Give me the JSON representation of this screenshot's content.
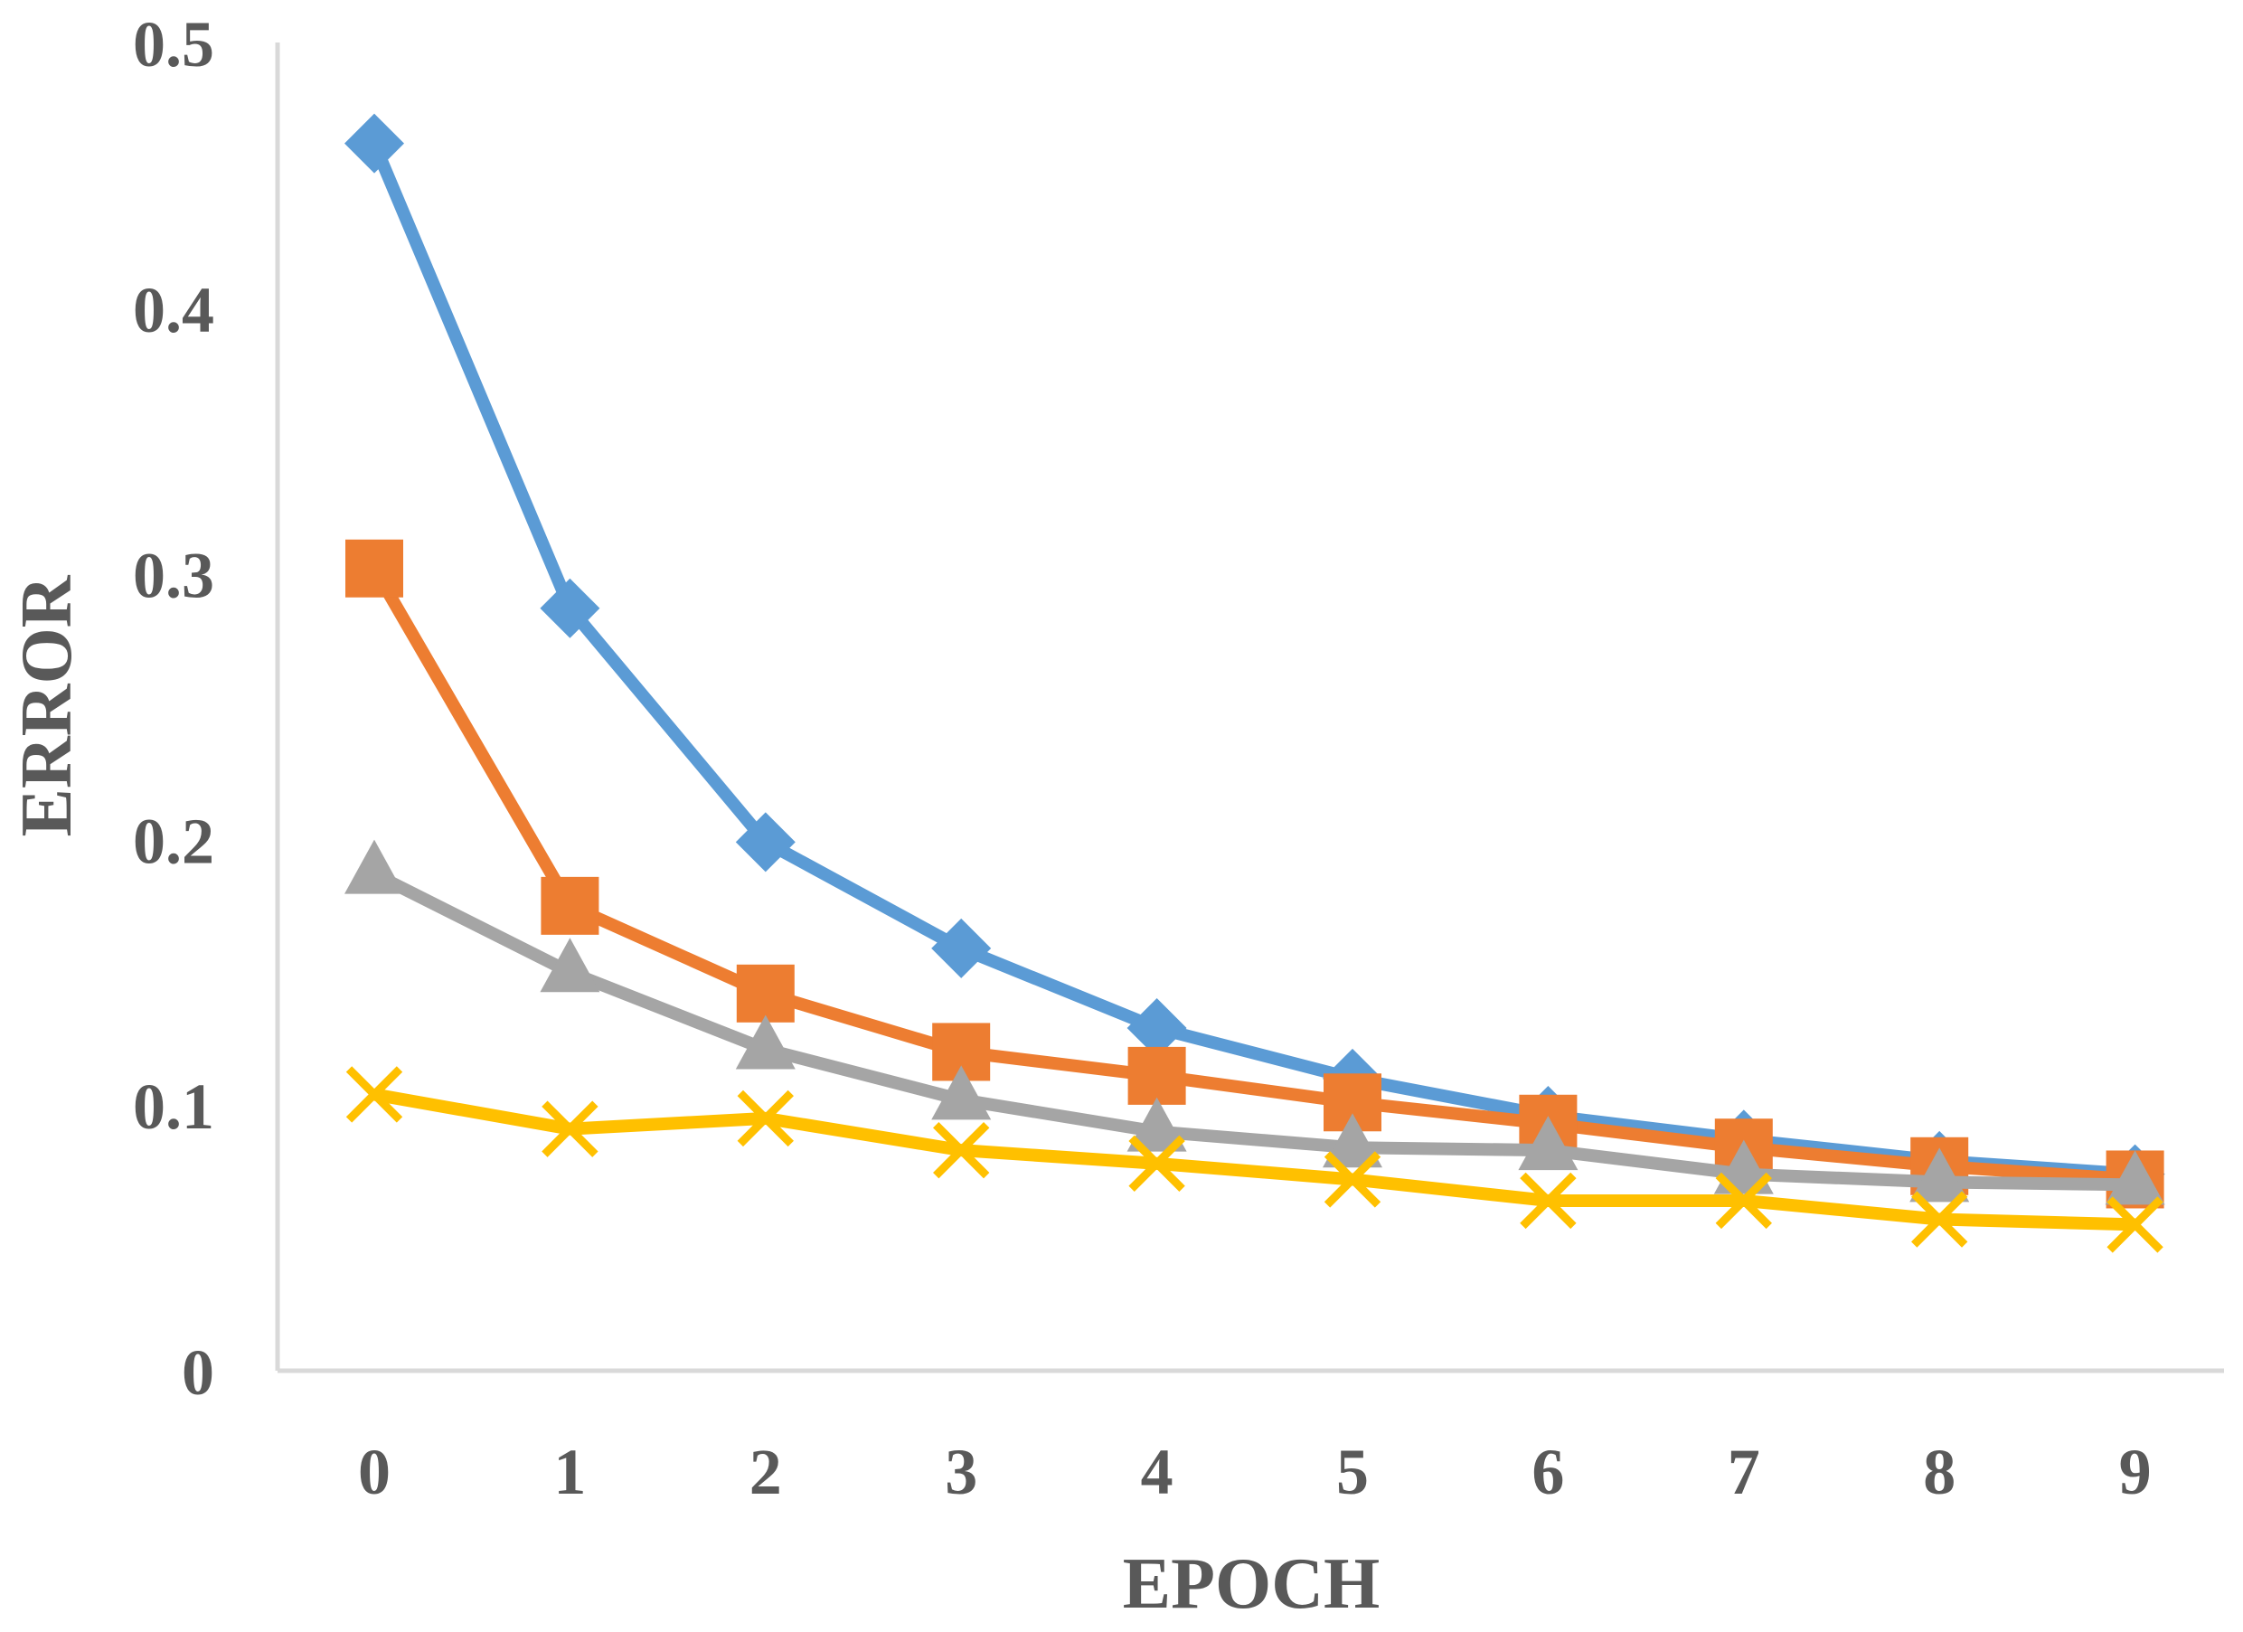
{
  "chart_data": {
    "type": "line",
    "title": "",
    "xlabel": "EPOCH",
    "ylabel": "ERROR",
    "x": [
      0,
      1,
      2,
      3,
      4,
      5,
      6,
      7,
      8,
      9
    ],
    "xticks": [
      "0",
      "1",
      "2",
      "3",
      "4",
      "5",
      "6",
      "7",
      "8",
      "9"
    ],
    "ylim": [
      0,
      0.5
    ],
    "yticks": [
      "0",
      "0.1",
      "0.2",
      "0.3",
      "0.4",
      "0.5"
    ],
    "ytick_values": [
      0,
      0.1,
      0.2,
      0.3,
      0.4,
      0.5
    ],
    "grid": false,
    "legend": "none",
    "series": [
      {
        "color": "#5B9BD5",
        "marker": "diamond",
        "values": [
          0.462,
          0.287,
          0.199,
          0.159,
          0.129,
          0.11,
          0.096,
          0.087,
          0.079,
          0.074
        ]
      },
      {
        "color": "#ED7D31",
        "marker": "square",
        "values": [
          0.302,
          0.175,
          0.142,
          0.12,
          0.111,
          0.101,
          0.093,
          0.084,
          0.077,
          0.072
        ]
      },
      {
        "color": "#A5A5A5",
        "marker": "triangle",
        "values": [
          0.187,
          0.15,
          0.121,
          0.102,
          0.09,
          0.084,
          0.083,
          0.074,
          0.071,
          0.07
        ]
      },
      {
        "color": "#FFC000",
        "marker": "x",
        "values": [
          0.104,
          0.091,
          0.095,
          0.083,
          0.078,
          0.072,
          0.064,
          0.064,
          0.057,
          0.055
        ]
      }
    ]
  }
}
